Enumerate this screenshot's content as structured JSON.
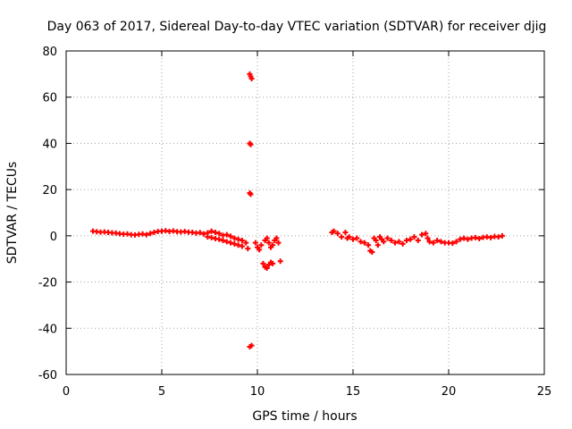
{
  "chart_data": {
    "type": "scatter",
    "title": "Day 063 of 2017, Sidereal Day-to-day VTEC variation (SDTVAR) for receiver djig",
    "xlabel": "GPS time / hours",
    "ylabel": "SDTVAR / TECUs",
    "xlim": [
      0,
      25
    ],
    "ylim": [
      -60,
      80
    ],
    "x_ticks": [
      0,
      5,
      10,
      15,
      20,
      25
    ],
    "y_ticks": [
      -60,
      -40,
      -20,
      0,
      20,
      40,
      60,
      80
    ],
    "grid": true,
    "series_color": "#ff0000",
    "marker": "plus",
    "series": [
      {
        "name": "SDTVAR",
        "points": [
          [
            1.4,
            2.0
          ],
          [
            1.6,
            1.8
          ],
          [
            1.8,
            1.6
          ],
          [
            2.0,
            1.7
          ],
          [
            2.2,
            1.5
          ],
          [
            2.4,
            1.3
          ],
          [
            2.6,
            1.2
          ],
          [
            2.8,
            0.9
          ],
          [
            3.0,
            0.7
          ],
          [
            3.2,
            0.8
          ],
          [
            3.4,
            0.5
          ],
          [
            3.6,
            0.4
          ],
          [
            3.8,
            0.6
          ],
          [
            4.0,
            0.8
          ],
          [
            4.2,
            0.5
          ],
          [
            4.4,
            1.0
          ],
          [
            4.6,
            1.5
          ],
          [
            4.8,
            1.9
          ],
          [
            5.0,
            2.0
          ],
          [
            5.2,
            2.2
          ],
          [
            5.4,
            1.9
          ],
          [
            5.6,
            2.1
          ],
          [
            5.8,
            1.8
          ],
          [
            6.0,
            1.7
          ],
          [
            6.2,
            1.9
          ],
          [
            6.4,
            1.6
          ],
          [
            6.6,
            1.5
          ],
          [
            6.8,
            1.2
          ],
          [
            7.0,
            1.4
          ],
          [
            7.2,
            0.8
          ],
          [
            7.4,
            1.3
          ],
          [
            7.4,
            -0.5
          ],
          [
            7.6,
            2.0
          ],
          [
            7.6,
            -0.8
          ],
          [
            7.8,
            1.5
          ],
          [
            7.8,
            -1.2
          ],
          [
            8.0,
            1.0
          ],
          [
            8.0,
            -1.5
          ],
          [
            8.2,
            0.2
          ],
          [
            8.2,
            -2.0
          ],
          [
            8.4,
            0.5
          ],
          [
            8.4,
            -2.5
          ],
          [
            8.6,
            -0.2
          ],
          [
            8.6,
            -3.0
          ],
          [
            8.8,
            -1.0
          ],
          [
            8.8,
            -3.5
          ],
          [
            9.0,
            -1.5
          ],
          [
            9.0,
            -4.0
          ],
          [
            9.2,
            -2.0
          ],
          [
            9.2,
            -4.5
          ],
          [
            9.4,
            -3.0
          ],
          [
            9.5,
            -5.5
          ],
          [
            9.6,
            70.0
          ],
          [
            9.65,
            69.0
          ],
          [
            9.7,
            68.0
          ],
          [
            9.6,
            40.0
          ],
          [
            9.65,
            39.5
          ],
          [
            9.6,
            18.5
          ],
          [
            9.65,
            18.0
          ],
          [
            9.6,
            -48.0
          ],
          [
            9.7,
            -47.5
          ],
          [
            9.9,
            -3.0
          ],
          [
            10.0,
            -5.0
          ],
          [
            10.1,
            -6.0
          ],
          [
            10.2,
            -4.0
          ],
          [
            10.3,
            -12.0
          ],
          [
            10.4,
            -13.5
          ],
          [
            10.5,
            -14.0
          ],
          [
            10.6,
            -12.5
          ],
          [
            10.7,
            -11.5
          ],
          [
            10.8,
            -12.0
          ],
          [
            10.4,
            -2.0
          ],
          [
            10.5,
            -1.0
          ],
          [
            10.6,
            -3.0
          ],
          [
            10.7,
            -5.0
          ],
          [
            10.8,
            -4.0
          ],
          [
            10.9,
            -2.0
          ],
          [
            11.0,
            -1.0
          ],
          [
            11.1,
            -3.0
          ],
          [
            11.2,
            -11.0
          ],
          [
            13.9,
            1.5
          ],
          [
            14.0,
            2.0
          ],
          [
            14.2,
            1.0
          ],
          [
            14.4,
            -0.5
          ],
          [
            14.6,
            1.5
          ],
          [
            14.7,
            -1.0
          ],
          [
            14.8,
            -0.5
          ],
          [
            15.0,
            -1.5
          ],
          [
            15.2,
            -1.0
          ],
          [
            15.4,
            -2.5
          ],
          [
            15.6,
            -3.0
          ],
          [
            15.8,
            -4.0
          ],
          [
            15.9,
            -6.5
          ],
          [
            16.0,
            -7.0
          ],
          [
            16.1,
            -1.0
          ],
          [
            16.2,
            -2.0
          ],
          [
            16.3,
            -4.0
          ],
          [
            16.4,
            -0.5
          ],
          [
            16.5,
            -1.5
          ],
          [
            16.6,
            -2.5
          ],
          [
            16.8,
            -1.0
          ],
          [
            17.0,
            -2.0
          ],
          [
            17.2,
            -3.0
          ],
          [
            17.4,
            -2.5
          ],
          [
            17.6,
            -3.5
          ],
          [
            17.8,
            -2.0
          ],
          [
            18.0,
            -1.5
          ],
          [
            18.2,
            -0.5
          ],
          [
            18.4,
            -2.0
          ],
          [
            18.6,
            0.5
          ],
          [
            18.8,
            1.0
          ],
          [
            18.9,
            -1.0
          ],
          [
            19.0,
            -2.5
          ],
          [
            19.2,
            -3.0
          ],
          [
            19.4,
            -2.0
          ],
          [
            19.6,
            -2.5
          ],
          [
            19.8,
            -3.0
          ],
          [
            20.0,
            -3.0
          ],
          [
            20.2,
            -3.2
          ],
          [
            20.4,
            -2.5
          ],
          [
            20.6,
            -1.5
          ],
          [
            20.8,
            -1.0
          ],
          [
            21.0,
            -1.5
          ],
          [
            21.2,
            -1.0
          ],
          [
            21.4,
            -0.8
          ],
          [
            21.6,
            -1.2
          ],
          [
            21.8,
            -0.7
          ],
          [
            22.0,
            -0.5
          ],
          [
            22.2,
            -0.8
          ],
          [
            22.4,
            -0.3
          ],
          [
            22.6,
            -0.5
          ],
          [
            22.8,
            0.0
          ]
        ]
      }
    ]
  }
}
